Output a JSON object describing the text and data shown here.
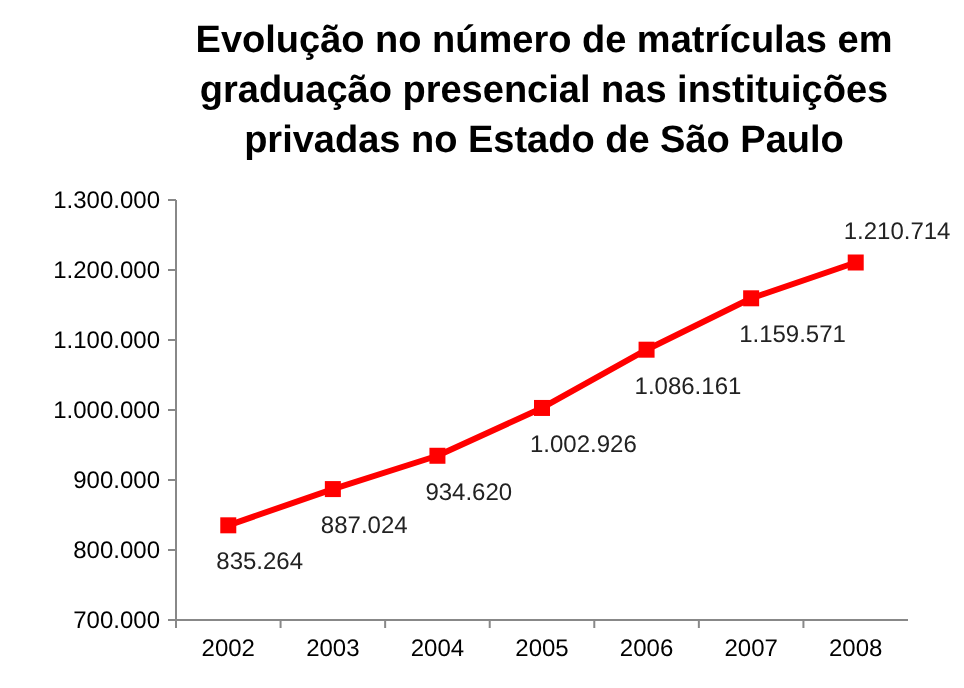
{
  "chart_data": {
    "type": "line",
    "title": "Evolução no número de matrículas em graduação presencial nas instituições privadas no Estado de São Paulo",
    "categories": [
      "2002",
      "2003",
      "2004",
      "2005",
      "2006",
      "2007",
      "2008"
    ],
    "series": [
      {
        "color": "#ff0000",
        "values": [
          835264,
          887024,
          934620,
          1002926,
          1086161,
          1159571,
          1210714
        ],
        "value_labels": [
          "835.264",
          "887.024",
          "934.620",
          "1.002.926",
          "1.086.161",
          "1.159.571",
          "1.210.714"
        ]
      }
    ],
    "ylim": [
      700000,
      1300000
    ],
    "yticks": [
      {
        "value": 700000,
        "label": "700.000"
      },
      {
        "value": 800000,
        "label": "800.000"
      },
      {
        "value": 900000,
        "label": "900.000"
      },
      {
        "value": 1000000,
        "label": "1.000.000"
      },
      {
        "value": 1100000,
        "label": "1.100.000"
      },
      {
        "value": 1200000,
        "label": "1.200.000"
      },
      {
        "value": 1300000,
        "label": "1.300.000"
      }
    ],
    "marker": "square",
    "line_style": "solid",
    "grid": false
  }
}
